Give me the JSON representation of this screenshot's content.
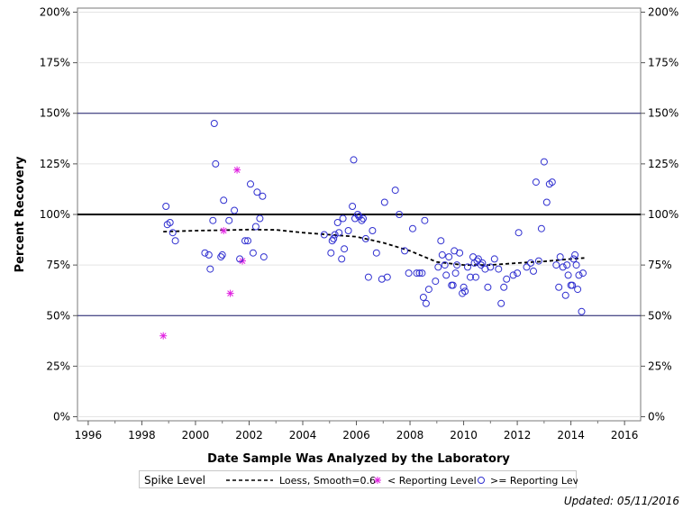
{
  "chart_data": {
    "type": "scatter",
    "xlabel": "Date Sample Was Analyzed by the Laboratory",
    "ylabel": "Percent Recovery",
    "xlim": [
      1995.6,
      2016.6
    ],
    "ylim": [
      -2,
      202
    ],
    "x_ticks": [
      "1996",
      "1998",
      "2000",
      "2002",
      "2004",
      "2006",
      "2008",
      "2010",
      "2012",
      "2014",
      "2016"
    ],
    "x_tick_values": [
      1996,
      1998,
      2000,
      2002,
      2004,
      2006,
      2008,
      2010,
      2012,
      2014,
      2016
    ],
    "y_ticks": [
      "0%",
      "25%",
      "50%",
      "75%",
      "100%",
      "125%",
      "150%",
      "175%",
      "200%"
    ],
    "y_tick_values": [
      0,
      25,
      50,
      75,
      100,
      125,
      150,
      175,
      200
    ],
    "reference_lines": {
      "bold": [
        100
      ],
      "thin": [
        50,
        150
      ]
    },
    "grid": true,
    "legend_position": "bottom",
    "legend": {
      "title": "Spike Level",
      "loess_label": "Loess, Smooth=0.6",
      "below_label": "< Reporting Level",
      "above_label": ">= Reporting Level"
    },
    "colors": {
      "below": "#e020e0",
      "above": "#3030d0",
      "loess": "#000000",
      "ref": "#1a1a6a"
    },
    "series": [
      {
        "name": "< Reporting Level",
        "marker": "asterisk",
        "points": [
          [
            1998.8,
            40
          ],
          [
            2001.05,
            92
          ],
          [
            2001.3,
            61
          ],
          [
            2001.55,
            122
          ],
          [
            2001.75,
            77
          ]
        ]
      },
      {
        "name": ">= Reporting Level",
        "marker": "circle",
        "points": [
          [
            1998.9,
            104
          ],
          [
            1998.95,
            95
          ],
          [
            1999.05,
            96
          ],
          [
            1999.15,
            91
          ],
          [
            1999.25,
            87
          ],
          [
            2000.35,
            81
          ],
          [
            2000.5,
            80
          ],
          [
            2000.55,
            73
          ],
          [
            2000.65,
            97
          ],
          [
            2000.7,
            145
          ],
          [
            2000.75,
            125
          ],
          [
            2000.95,
            79
          ],
          [
            2001.0,
            80
          ],
          [
            2001.05,
            107
          ],
          [
            2001.25,
            97
          ],
          [
            2001.45,
            102
          ],
          [
            2001.65,
            78
          ],
          [
            2001.85,
            87
          ],
          [
            2001.95,
            87
          ],
          [
            2002.05,
            115
          ],
          [
            2002.15,
            81
          ],
          [
            2002.25,
            94
          ],
          [
            2002.3,
            111
          ],
          [
            2002.4,
            98
          ],
          [
            2002.5,
            109
          ],
          [
            2002.55,
            79
          ],
          [
            2004.8,
            90
          ],
          [
            2005.05,
            81
          ],
          [
            2005.1,
            87
          ],
          [
            2005.15,
            88
          ],
          [
            2005.2,
            90
          ],
          [
            2005.3,
            96
          ],
          [
            2005.35,
            91
          ],
          [
            2005.45,
            78
          ],
          [
            2005.5,
            98
          ],
          [
            2005.55,
            83
          ],
          [
            2005.7,
            92
          ],
          [
            2005.85,
            104
          ],
          [
            2005.9,
            127
          ],
          [
            2005.95,
            98
          ],
          [
            2006.05,
            100
          ],
          [
            2006.1,
            99
          ],
          [
            2006.2,
            97
          ],
          [
            2006.25,
            98
          ],
          [
            2006.35,
            88
          ],
          [
            2006.45,
            69
          ],
          [
            2006.6,
            92
          ],
          [
            2006.75,
            81
          ],
          [
            2006.95,
            68
          ],
          [
            2007.05,
            106
          ],
          [
            2007.15,
            69
          ],
          [
            2007.45,
            112
          ],
          [
            2007.6,
            100
          ],
          [
            2007.8,
            82
          ],
          [
            2007.95,
            71
          ],
          [
            2008.1,
            93
          ],
          [
            2008.25,
            71
          ],
          [
            2008.35,
            71
          ],
          [
            2008.45,
            71
          ],
          [
            2008.5,
            59
          ],
          [
            2008.55,
            97
          ],
          [
            2008.6,
            56
          ],
          [
            2008.7,
            63
          ],
          [
            2008.95,
            67
          ],
          [
            2009.05,
            74
          ],
          [
            2009.15,
            87
          ],
          [
            2009.2,
            80
          ],
          [
            2009.3,
            75
          ],
          [
            2009.35,
            70
          ],
          [
            2009.45,
            79
          ],
          [
            2009.55,
            65
          ],
          [
            2009.6,
            65
          ],
          [
            2009.65,
            82
          ],
          [
            2009.7,
            71
          ],
          [
            2009.75,
            75
          ],
          [
            2009.85,
            81
          ],
          [
            2009.95,
            61
          ],
          [
            2010.0,
            64
          ],
          [
            2010.05,
            62
          ],
          [
            2010.15,
            74
          ],
          [
            2010.25,
            69
          ],
          [
            2010.35,
            79
          ],
          [
            2010.4,
            76
          ],
          [
            2010.45,
            69
          ],
          [
            2010.5,
            77
          ],
          [
            2010.55,
            78
          ],
          [
            2010.65,
            75
          ],
          [
            2010.7,
            76
          ],
          [
            2010.8,
            73
          ],
          [
            2010.9,
            64
          ],
          [
            2011.0,
            74
          ],
          [
            2011.15,
            78
          ],
          [
            2011.3,
            73
          ],
          [
            2011.4,
            56
          ],
          [
            2011.5,
            64
          ],
          [
            2011.6,
            68
          ],
          [
            2011.85,
            70
          ],
          [
            2012.0,
            71
          ],
          [
            2012.05,
            91
          ],
          [
            2012.35,
            74
          ],
          [
            2012.5,
            76
          ],
          [
            2012.6,
            72
          ],
          [
            2012.7,
            116
          ],
          [
            2012.8,
            77
          ],
          [
            2012.9,
            93
          ],
          [
            2013.0,
            126
          ],
          [
            2013.1,
            106
          ],
          [
            2013.2,
            115
          ],
          [
            2013.3,
            116
          ],
          [
            2013.45,
            75
          ],
          [
            2013.55,
            64
          ],
          [
            2013.6,
            79
          ],
          [
            2013.7,
            74
          ],
          [
            2013.8,
            60
          ],
          [
            2013.85,
            75
          ],
          [
            2013.9,
            70
          ],
          [
            2014.0,
            65
          ],
          [
            2014.05,
            65
          ],
          [
            2014.1,
            78
          ],
          [
            2014.15,
            80
          ],
          [
            2014.2,
            75
          ],
          [
            2014.25,
            63
          ],
          [
            2014.3,
            70
          ],
          [
            2014.4,
            52
          ],
          [
            2014.45,
            71
          ]
        ]
      },
      {
        "name": "Loess, Smooth=0.6",
        "marker": "line",
        "points": [
          [
            1998.8,
            91.5
          ],
          [
            2000,
            92.0
          ],
          [
            2001,
            92.2
          ],
          [
            2002,
            92.5
          ],
          [
            2003,
            92.4
          ],
          [
            2004,
            91.0
          ],
          [
            2005,
            90.0
          ],
          [
            2006,
            89.0
          ],
          [
            2007,
            86.0
          ],
          [
            2008,
            82.0
          ],
          [
            2009,
            76.5
          ],
          [
            2010,
            75.0
          ],
          [
            2011,
            75.0
          ],
          [
            2012,
            76.0
          ],
          [
            2013,
            76.8
          ],
          [
            2014,
            78.0
          ],
          [
            2014.5,
            78.5
          ]
        ]
      }
    ]
  },
  "footer": {
    "updated": "Updated: 05/11/2016"
  }
}
